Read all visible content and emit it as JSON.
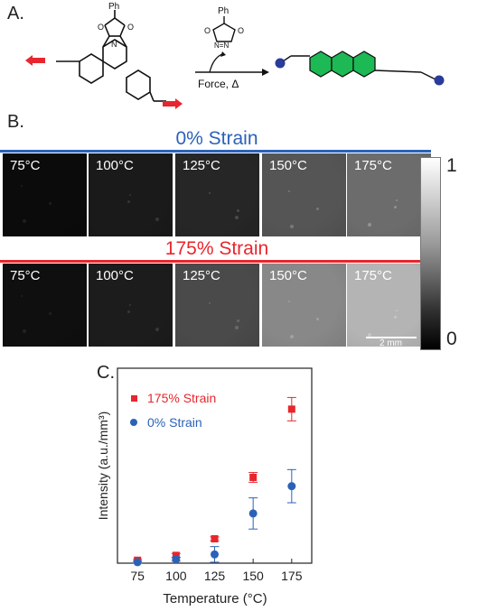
{
  "panel_a": {
    "label": "A.",
    "substituent_ph": "Ph",
    "reagent_ph": "Ph",
    "condition": "Force, Δ"
  },
  "panel_b": {
    "label": "B.",
    "top_row": {
      "title": "0% Strain",
      "color": "#2b62b8",
      "tiles": [
        {
          "temp": "75°C",
          "shade": "#0b0b0b"
        },
        {
          "temp": "100°C",
          "shade": "#1a1a1a"
        },
        {
          "temp": "125°C",
          "shade": "#262626"
        },
        {
          "temp": "150°C",
          "shade": "#555555"
        },
        {
          "temp": "175°C",
          "shade": "#6c6c6c"
        }
      ]
    },
    "bottom_row": {
      "title": "175% Strain",
      "color": "#e8262d",
      "tiles": [
        {
          "temp": "75°C",
          "shade": "#0f0f0f"
        },
        {
          "temp": "100°C",
          "shade": "#1c1c1c"
        },
        {
          "temp": "125°C",
          "shade": "#4a4a4a"
        },
        {
          "temp": "150°C",
          "shade": "#888888"
        },
        {
          "temp": "175°C",
          "shade": "#b4b4b4"
        }
      ]
    },
    "colorbar": {
      "max_label": "1",
      "min_label": "0"
    },
    "scale_bar": "2 mm"
  },
  "panel_c": {
    "label": "C."
  },
  "chart_data": {
    "type": "scatter",
    "xlabel": "Temperature (°C)",
    "ylabel": "Intensity (a.u./mm³)",
    "x": [
      75,
      100,
      125,
      150,
      175
    ],
    "xlim": [
      62,
      188
    ],
    "ylim": [
      0,
      1
    ],
    "legend_position": "top-left",
    "series": [
      {
        "name": "175% Strain",
        "color": "#e8262d",
        "marker": "square",
        "values": [
          0.015,
          0.04,
          0.125,
          0.44,
          0.79
        ],
        "errors": [
          0.005,
          0.01,
          0.01,
          0.025,
          0.06
        ]
      },
      {
        "name": "0% Strain",
        "color": "#2b62b8",
        "marker": "circle",
        "values": [
          0.005,
          0.02,
          0.045,
          0.255,
          0.395
        ],
        "errors": [
          0.005,
          0.01,
          0.04,
          0.08,
          0.085
        ]
      }
    ]
  }
}
